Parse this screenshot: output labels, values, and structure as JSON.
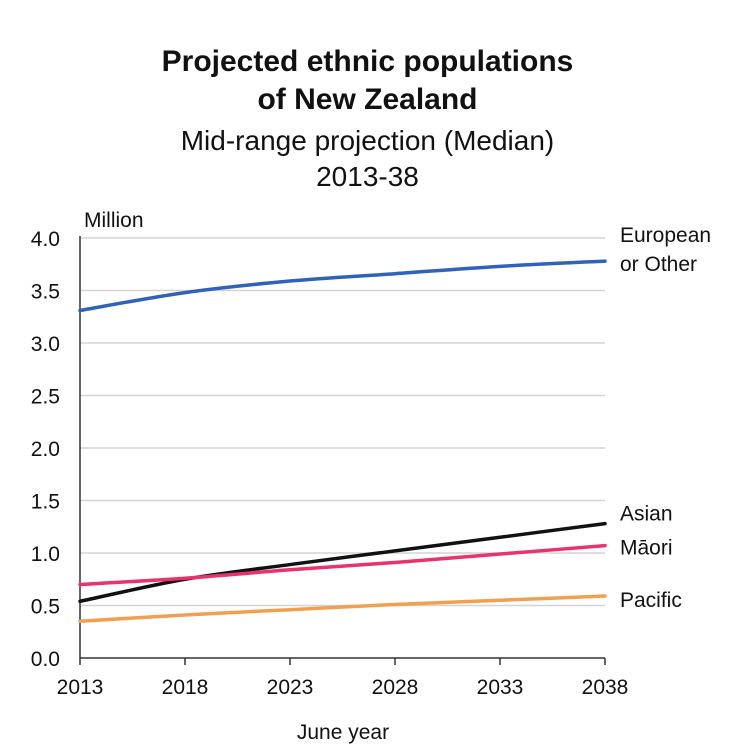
{
  "chart_data": {
    "type": "line",
    "title": [
      "Projected ethnic populations",
      "of New Zealand"
    ],
    "subtitle": [
      "Mid-range projection (Median)",
      "2013-38"
    ],
    "ylabel": "Million",
    "xlabel": "June year",
    "x": [
      2013,
      2018,
      2023,
      2028,
      2033,
      2038
    ],
    "xlim": [
      2013,
      2038
    ],
    "ylim": [
      0,
      4
    ],
    "yticks": [
      "0.0",
      "0.5",
      "1.0",
      "1.5",
      "2.0",
      "2.5",
      "3.0",
      "3.5",
      "4.0"
    ],
    "xticks": [
      "2013",
      "2018",
      "2023",
      "2028",
      "2033",
      "2038"
    ],
    "grid": true,
    "series": [
      {
        "name": "European or Other",
        "label_lines": [
          "European",
          "or Other"
        ],
        "color": "#2f62b8",
        "values": [
          3.31,
          3.48,
          3.59,
          3.66,
          3.73,
          3.78
        ]
      },
      {
        "name": "Asian",
        "label_lines": [
          "Asian"
        ],
        "color": "#111111",
        "values": [
          0.54,
          0.75,
          0.89,
          1.02,
          1.15,
          1.28
        ]
      },
      {
        "name": "Māori",
        "label_lines": [
          "Māori"
        ],
        "color": "#e8336b",
        "values": [
          0.7,
          0.76,
          0.84,
          0.91,
          0.99,
          1.07
        ]
      },
      {
        "name": "Pacific",
        "label_lines": [
          "Pacific"
        ],
        "color": "#f0a050",
        "values": [
          0.35,
          0.41,
          0.46,
          0.51,
          0.55,
          0.59
        ]
      }
    ]
  }
}
